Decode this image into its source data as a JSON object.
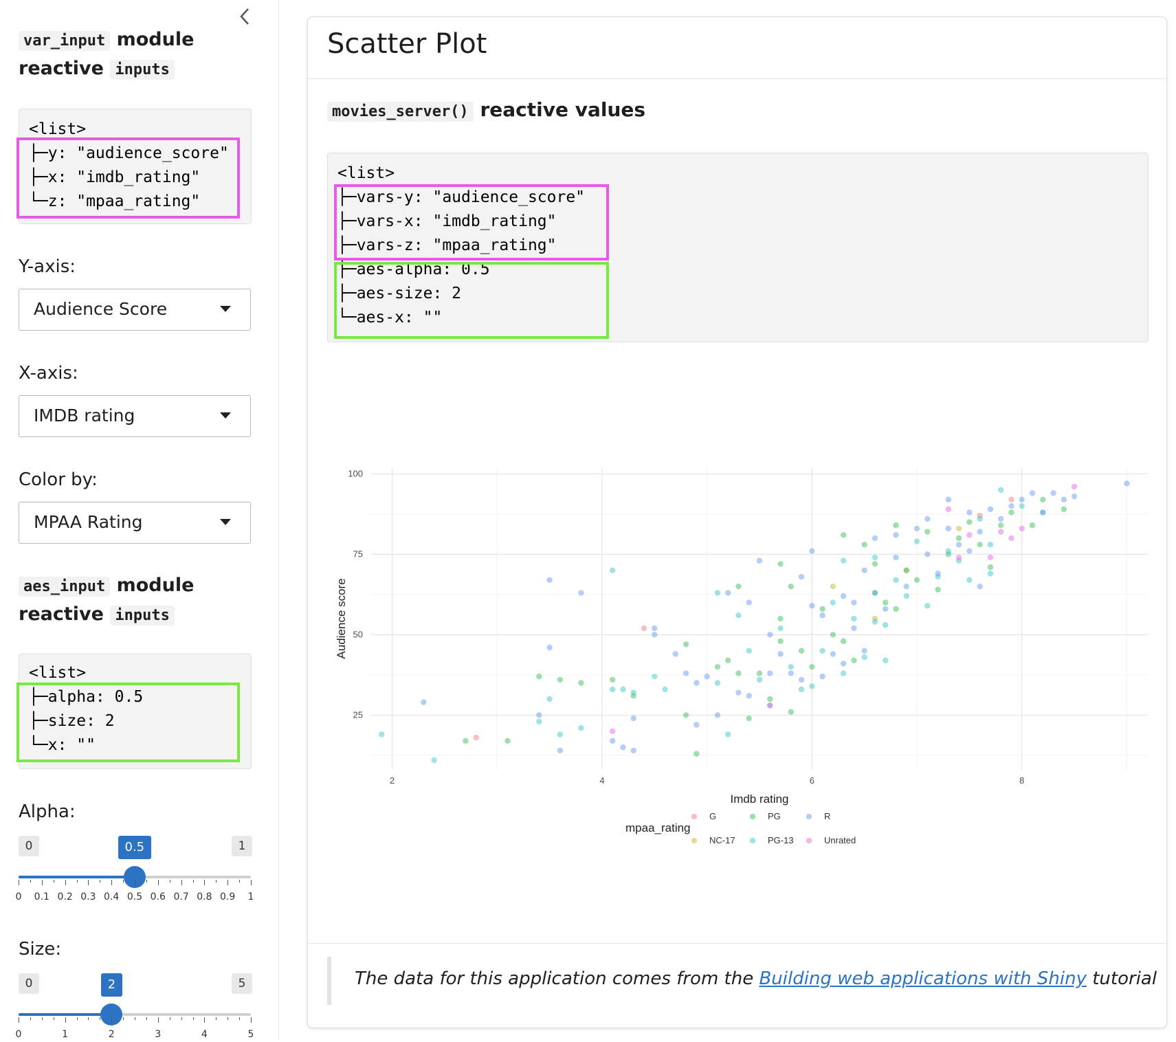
{
  "sidebar": {
    "var_input_heading": {
      "code": "var_input",
      "word1": "module",
      "word2": "reactive",
      "code2": "inputs"
    },
    "var_list": {
      "lines": [
        "<list>",
        "├─y: \"audience_score\"",
        "├─x: \"imdb_rating\"",
        "└─z: \"mpaa_rating\""
      ]
    },
    "yaxis": {
      "label": "Y-axis:",
      "value": "Audience Score"
    },
    "xaxis": {
      "label": "X-axis:",
      "value": "IMDB rating"
    },
    "colorby": {
      "label": "Color by:",
      "value": "MPAA Rating"
    },
    "aes_input_heading": {
      "code": "aes_input",
      "word1": "module",
      "word2": "reactive",
      "code2": "inputs"
    },
    "aes_list": {
      "lines": [
        "<list>",
        "├─alpha: 0.5",
        "├─size: 2",
        "└─x: \"\""
      ]
    },
    "alpha": {
      "label": "Alpha:",
      "min": "0",
      "max": "1",
      "value": 0.5,
      "value_label": "0.5",
      "ticks": [
        "0",
        "0.1",
        "0.2",
        "0.3",
        "0.4",
        "0.5",
        "0.6",
        "0.7",
        "0.8",
        "0.9",
        "1"
      ]
    },
    "size": {
      "label": "Size:",
      "min": "0",
      "max": "5",
      "value": 2,
      "value_label": "2",
      "ticks": [
        "0",
        "1",
        "2",
        "3",
        "4",
        "5"
      ]
    }
  },
  "main": {
    "title": "Scatter Plot",
    "reactive_heading": {
      "code": "movies_server()",
      "text": "reactive values"
    },
    "server_list": {
      "lines": [
        "<list>",
        "├─vars-y: \"audience_score\"",
        "├─vars-x: \"imdb_rating\"",
        "├─vars-z: \"mpaa_rating\"",
        "├─aes-alpha: 0.5",
        "├─aes-size: 2",
        "└─aes-x: \"\""
      ]
    },
    "footer": {
      "prefix": "The data for this application comes from the",
      "link": "Building web applications with Shiny",
      "suffix": "tutorial"
    }
  },
  "colors": {
    "accent": "#2c73c4",
    "highlight_pink": "#e85be8",
    "highlight_green": "#79e843",
    "G": "#f08080",
    "NC-17": "#c9b637",
    "PG": "#3fbf5a",
    "PG-13": "#3fc8c8",
    "R": "#6b9ef0",
    "Unrated": "#e56be5"
  },
  "chart_data": {
    "type": "scatter",
    "xlabel": "Imdb rating",
    "ylabel": "Audience score",
    "xlim": [
      1.8,
      9.2
    ],
    "ylim": [
      8,
      102
    ],
    "xticks": [
      2,
      4,
      6,
      8
    ],
    "yticks": [
      25,
      50,
      75,
      100
    ],
    "grid": true,
    "legend": {
      "title": "mpaa_rating",
      "position": "bottom",
      "entries": [
        "G",
        "NC-17",
        "PG",
        "PG-13",
        "R",
        "Unrated"
      ]
    },
    "alpha": 0.5,
    "series": [
      {
        "name": "G",
        "points": [
          [
            2.8,
            18
          ],
          [
            4.4,
            52
          ],
          [
            7.6,
            87
          ],
          [
            7.9,
            92
          ]
        ]
      },
      {
        "name": "NC-17",
        "points": [
          [
            6.2,
            65
          ],
          [
            6.6,
            55
          ],
          [
            6.9,
            70
          ],
          [
            7.4,
            83
          ]
        ]
      },
      {
        "name": "PG",
        "points": [
          [
            2.7,
            17
          ],
          [
            3.1,
            17
          ],
          [
            3.4,
            37
          ],
          [
            3.6,
            36
          ],
          [
            3.8,
            35
          ],
          [
            4.1,
            36
          ],
          [
            4.3,
            31
          ],
          [
            4.8,
            47
          ],
          [
            4.8,
            25
          ],
          [
            4.9,
            13
          ],
          [
            5.1,
            40
          ],
          [
            5.2,
            42
          ],
          [
            5.3,
            65
          ],
          [
            5.3,
            38
          ],
          [
            5.4,
            24
          ],
          [
            5.5,
            38
          ],
          [
            5.6,
            30
          ],
          [
            5.7,
            72
          ],
          [
            5.7,
            55
          ],
          [
            5.7,
            48
          ],
          [
            5.8,
            26
          ],
          [
            5.8,
            65
          ],
          [
            5.9,
            45
          ],
          [
            6.0,
            40
          ],
          [
            6.1,
            58
          ],
          [
            6.2,
            50
          ],
          [
            6.3,
            81
          ],
          [
            6.3,
            48
          ],
          [
            6.4,
            42
          ],
          [
            6.5,
            78
          ],
          [
            6.6,
            72
          ],
          [
            6.6,
            63
          ],
          [
            6.7,
            60
          ],
          [
            6.8,
            84
          ],
          [
            6.8,
            58
          ],
          [
            6.9,
            70
          ],
          [
            7.0,
            67
          ],
          [
            7.1,
            82
          ],
          [
            7.2,
            64
          ],
          [
            7.3,
            75
          ],
          [
            7.4,
            80
          ],
          [
            7.5,
            85
          ],
          [
            7.6,
            78
          ],
          [
            7.7,
            71
          ],
          [
            7.8,
            84
          ],
          [
            7.9,
            88
          ],
          [
            8.1,
            84
          ],
          [
            8.2,
            92
          ],
          [
            8.4,
            89
          ]
        ]
      },
      {
        "name": "PG-13",
        "points": [
          [
            1.9,
            19
          ],
          [
            2.4,
            11
          ],
          [
            3.4,
            23
          ],
          [
            3.5,
            30
          ],
          [
            3.6,
            19
          ],
          [
            3.8,
            21
          ],
          [
            4.1,
            70
          ],
          [
            4.1,
            33
          ],
          [
            4.2,
            33
          ],
          [
            4.3,
            32
          ],
          [
            4.5,
            37
          ],
          [
            4.6,
            33
          ],
          [
            5.1,
            63
          ],
          [
            5.1,
            35
          ],
          [
            5.2,
            19
          ],
          [
            5.3,
            56
          ],
          [
            5.4,
            45
          ],
          [
            5.5,
            36
          ],
          [
            5.6,
            28
          ],
          [
            5.7,
            52
          ],
          [
            5.8,
            40
          ],
          [
            5.9,
            33
          ],
          [
            6.0,
            34
          ],
          [
            6.1,
            45
          ],
          [
            6.2,
            60
          ],
          [
            6.3,
            73
          ],
          [
            6.3,
            38
          ],
          [
            6.4,
            55
          ],
          [
            6.5,
            43
          ],
          [
            6.6,
            74
          ],
          [
            6.6,
            54
          ],
          [
            6.7,
            53
          ],
          [
            6.7,
            42
          ],
          [
            6.8,
            67
          ],
          [
            6.9,
            62
          ],
          [
            7.0,
            79
          ],
          [
            7.1,
            59
          ],
          [
            7.2,
            68
          ],
          [
            7.3,
            76
          ],
          [
            7.4,
            73
          ],
          [
            7.5,
            67
          ],
          [
            7.6,
            86
          ],
          [
            7.7,
            78
          ],
          [
            7.7,
            69
          ],
          [
            7.8,
            95
          ],
          [
            8.0,
            90
          ],
          [
            8.2,
            88
          ]
        ]
      },
      {
        "name": "R",
        "points": [
          [
            2.3,
            29
          ],
          [
            3.4,
            25
          ],
          [
            3.5,
            67
          ],
          [
            3.5,
            46
          ],
          [
            3.6,
            14
          ],
          [
            3.8,
            63
          ],
          [
            4.1,
            17
          ],
          [
            4.2,
            15
          ],
          [
            4.3,
            14
          ],
          [
            4.3,
            24
          ],
          [
            4.5,
            52
          ],
          [
            4.5,
            50
          ],
          [
            4.7,
            44
          ],
          [
            4.8,
            38
          ],
          [
            4.9,
            35
          ],
          [
            4.9,
            22
          ],
          [
            5.0,
            37
          ],
          [
            5.1,
            25
          ],
          [
            5.2,
            63
          ],
          [
            5.3,
            32
          ],
          [
            5.4,
            31
          ],
          [
            5.4,
            60
          ],
          [
            5.5,
            73
          ],
          [
            5.6,
            50
          ],
          [
            5.6,
            38
          ],
          [
            5.7,
            44
          ],
          [
            5.8,
            38
          ],
          [
            5.9,
            68
          ],
          [
            5.9,
            36
          ],
          [
            6.0,
            76
          ],
          [
            6.0,
            59
          ],
          [
            6.1,
            56
          ],
          [
            6.1,
            37
          ],
          [
            6.2,
            44
          ],
          [
            6.3,
            62
          ],
          [
            6.3,
            41
          ],
          [
            6.4,
            60
          ],
          [
            6.4,
            52
          ],
          [
            6.5,
            70
          ],
          [
            6.5,
            45
          ],
          [
            6.6,
            80
          ],
          [
            6.6,
            63
          ],
          [
            6.7,
            58
          ],
          [
            6.8,
            81
          ],
          [
            6.8,
            74
          ],
          [
            6.9,
            65
          ],
          [
            7.0,
            83
          ],
          [
            7.1,
            75
          ],
          [
            7.1,
            86
          ],
          [
            7.2,
            69
          ],
          [
            7.3,
            83
          ],
          [
            7.3,
            92
          ],
          [
            7.4,
            78
          ],
          [
            7.5,
            76
          ],
          [
            7.5,
            88
          ],
          [
            7.6,
            82
          ],
          [
            7.6,
            65
          ],
          [
            7.7,
            89
          ],
          [
            7.8,
            86
          ],
          [
            7.9,
            90
          ],
          [
            8.0,
            92
          ],
          [
            8.1,
            94
          ],
          [
            8.2,
            88
          ],
          [
            8.3,
            94
          ],
          [
            8.4,
            92
          ],
          [
            8.5,
            93
          ],
          [
            9.0,
            97
          ]
        ]
      },
      {
        "name": "Unrated",
        "points": [
          [
            4.1,
            20
          ],
          [
            5.6,
            28
          ],
          [
            7.3,
            89
          ],
          [
            7.4,
            74
          ],
          [
            7.5,
            81
          ],
          [
            7.7,
            74
          ],
          [
            7.8,
            82
          ],
          [
            7.9,
            80
          ],
          [
            8.5,
            96
          ],
          [
            8.0,
            83
          ]
        ]
      }
    ]
  }
}
